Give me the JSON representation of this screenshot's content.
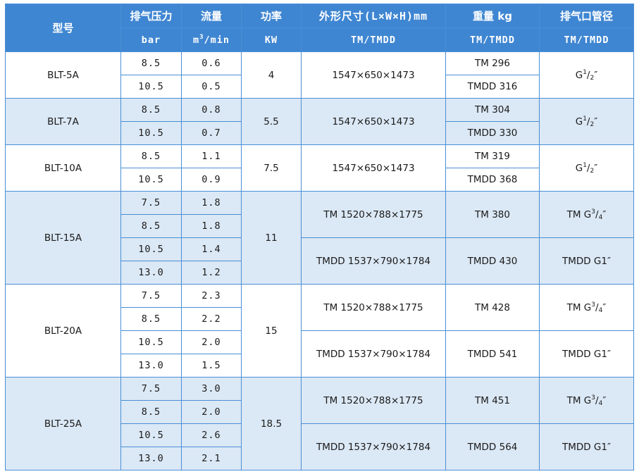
{
  "header": {
    "model": "型号",
    "pressure": "排气压力",
    "pressure_unit": "bar",
    "flow": "流量",
    "flow_unit_m": "m",
    "flow_unit_sup": "3",
    "flow_unit_rest": "/min",
    "power": "功率",
    "power_unit": "KW",
    "dims": "外形尺寸(L×W×H)mm",
    "dims_unit": "TM/TMDD",
    "weight": "重量 kg",
    "weight_unit": "TM/TMDD",
    "outlet": "排气口管径",
    "outlet_unit": "TM/TMDD"
  },
  "rows": [
    {
      "model": "BLT-5A",
      "power": "4",
      "dims": "1547×650×1473",
      "weight_tm": "TM 296",
      "weight_tmdd": "TMDD 316",
      "outlet": {
        "g": "G",
        "sup": "1",
        "sub": "2",
        "tail": "″"
      },
      "points": [
        {
          "p": "8.5",
          "f": "0.6"
        },
        {
          "p": "10.5",
          "f": "0.5"
        }
      ]
    },
    {
      "model": "BLT-7A",
      "power": "5.5",
      "dims": "1547×650×1473",
      "weight_tm": "TM 304",
      "weight_tmdd": "TMDD 330",
      "outlet": {
        "g": "G",
        "sup": "1",
        "sub": "2",
        "tail": "″"
      },
      "points": [
        {
          "p": "8.5",
          "f": "0.8"
        },
        {
          "p": "10.5",
          "f": "0.7"
        }
      ]
    },
    {
      "model": "BLT-10A",
      "power": "7.5",
      "dims": "1547×650×1473",
      "weight_tm": "TM 319",
      "weight_tmdd": "TMDD 368",
      "outlet": {
        "g": "G",
        "sup": "1",
        "sub": "2",
        "tail": "″"
      },
      "points": [
        {
          "p": "8.5",
          "f": "1.1"
        },
        {
          "p": "10.5",
          "f": "0.9"
        }
      ]
    },
    {
      "model": "BLT-15A",
      "power": "11",
      "dims_tm": "TM 1520×788×1775",
      "dims_tmdd": "TMDD 1537×790×1784",
      "weight_tm": "TM 380",
      "weight_tmdd": "TMDD 430",
      "outlet_tm": {
        "g": "TM G",
        "sup": "3",
        "sub": "4",
        "tail": "″"
      },
      "outlet_tmdd": "TMDD G1″",
      "points": [
        {
          "p": "7.5",
          "f": "1.8"
        },
        {
          "p": "8.5",
          "f": "1.8"
        },
        {
          "p": "10.5",
          "f": "1.4"
        },
        {
          "p": "13.0",
          "f": "1.2"
        }
      ]
    },
    {
      "model": "BLT-20A",
      "power": "15",
      "dims_tm": "TM 1520×788×1775",
      "dims_tmdd": "TMDD 1537×790×1784",
      "weight_tm": "TM 428",
      "weight_tmdd": "TMDD 541",
      "outlet_tm": {
        "g": "TM G",
        "sup": "3",
        "sub": "4",
        "tail": "″"
      },
      "outlet_tmdd": "TMDD G1″",
      "points": [
        {
          "p": "7.5",
          "f": "2.3"
        },
        {
          "p": "8.5",
          "f": "2.2"
        },
        {
          "p": "10.5",
          "f": "2.0"
        },
        {
          "p": "13.0",
          "f": "1.5"
        }
      ]
    },
    {
      "model": "BLT-25A",
      "power": "18.5",
      "dims_tm": "TM 1520×788×1775",
      "dims_tmdd": "TMDD 1537×790×1784",
      "weight_tm": "TM 451",
      "weight_tmdd": "TMDD 564",
      "outlet_tm": {
        "g": "TM G",
        "sup": "3",
        "sub": "4",
        "tail": "″"
      },
      "outlet_tmdd": "TMDD G1″",
      "points": [
        {
          "p": "7.5",
          "f": "3.0"
        },
        {
          "p": "8.5",
          "f": "2.0"
        },
        {
          "p": "10.5",
          "f": "2.6"
        },
        {
          "p": "13.0",
          "f": "2.1"
        }
      ]
    }
  ],
  "colors": {
    "header_bg": "#3f86d2",
    "band_bg": "#dbe8f5",
    "border": "#4a8fd6"
  }
}
